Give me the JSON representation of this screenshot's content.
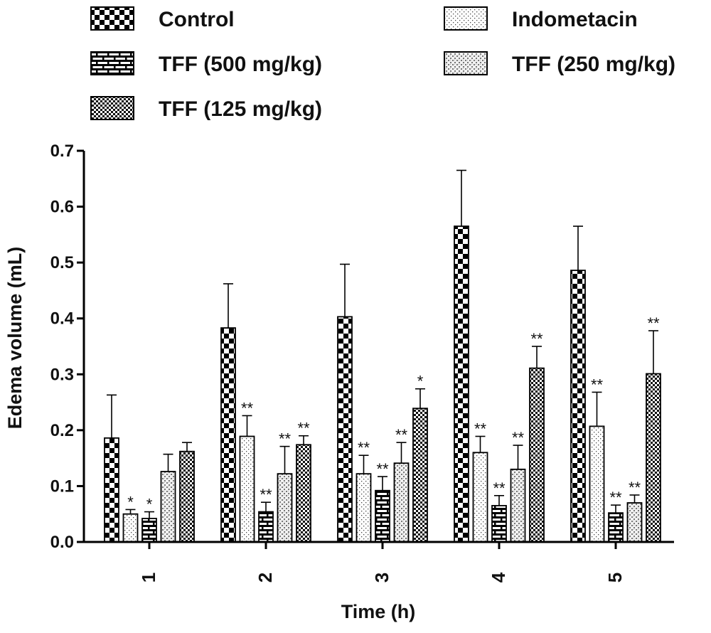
{
  "chart_data": {
    "type": "bar",
    "xlabel": "Time (h)",
    "ylabel": "Edema volume (mL)",
    "ylim": [
      0,
      0.7
    ],
    "yticks": [
      "0.0",
      "0.1",
      "0.2",
      "0.3",
      "0.4",
      "0.5",
      "0.6",
      "0.7"
    ],
    "categories": [
      "1",
      "2",
      "3",
      "4",
      "5"
    ],
    "legend_position": "top",
    "error_bars": "upper",
    "series": [
      {
        "name": "Control",
        "pattern": "checker",
        "values": [
          0.186,
          0.383,
          0.403,
          0.565,
          0.486
        ],
        "errors": [
          0.077,
          0.079,
          0.094,
          0.1,
          0.079
        ],
        "significance": [
          "",
          "",
          "",
          "",
          ""
        ]
      },
      {
        "name": "Indometacin",
        "pattern": "dots",
        "values": [
          0.05,
          0.189,
          0.122,
          0.16,
          0.207
        ],
        "errors": [
          0.008,
          0.037,
          0.033,
          0.029,
          0.061
        ],
        "significance": [
          "*",
          "**",
          "**",
          "**",
          "**"
        ]
      },
      {
        "name": "TFF (500 mg/kg)",
        "pattern": "brick",
        "values": [
          0.042,
          0.054,
          0.092,
          0.065,
          0.052
        ],
        "errors": [
          0.012,
          0.017,
          0.025,
          0.018,
          0.014
        ],
        "significance": [
          "*",
          "**",
          "**",
          "**",
          "**"
        ]
      },
      {
        "name": "TFF (250 mg/kg)",
        "pattern": "speckle",
        "values": [
          0.126,
          0.122,
          0.141,
          0.13,
          0.07
        ],
        "errors": [
          0.031,
          0.049,
          0.037,
          0.043,
          0.014
        ],
        "significance": [
          "",
          "**",
          "**",
          "**",
          "**"
        ]
      },
      {
        "name": "TFF (125 mg/kg)",
        "pattern": "fine-check",
        "values": [
          0.162,
          0.174,
          0.239,
          0.311,
          0.301
        ],
        "errors": [
          0.016,
          0.016,
          0.035,
          0.039,
          0.077
        ],
        "significance": [
          "",
          "**",
          "*",
          "**",
          "**"
        ]
      }
    ]
  }
}
